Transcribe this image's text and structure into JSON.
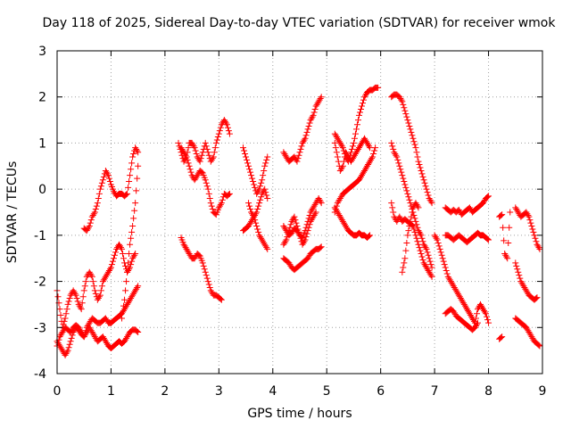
{
  "chart_data": {
    "type": "scatter",
    "title": "Day 118 of 2025, Sidereal Day-to-day VTEC variation (SDTVAR) for receiver wmok",
    "xlabel": "GPS time / hours",
    "ylabel": "SDTVAR / TECUs",
    "xlim": [
      0,
      9
    ],
    "ylim": [
      -4,
      3
    ],
    "xticks": [
      "0",
      "1",
      "2",
      "3",
      "4",
      "5",
      "6",
      "7",
      "8",
      "9"
    ],
    "yticks": [
      "-4",
      "-3",
      "-2",
      "-1",
      "0",
      "1",
      "2",
      "3"
    ],
    "grid": true,
    "marker": "+",
    "marker_color": "#ff0000",
    "series": [
      {
        "x": [
          0.0,
          0.05,
          0.1,
          0.15,
          0.2,
          0.25,
          0.3,
          0.35,
          0.4,
          0.45,
          0.5,
          0.55,
          0.6,
          0.65,
          0.7,
          0.75,
          0.8,
          0.85,
          0.9,
          0.95,
          1.0,
          1.05,
          1.1,
          1.15,
          1.2,
          1.25,
          1.3,
          1.35,
          1.4,
          1.45,
          1.5
        ],
        "y": [
          -3.4,
          -3.2,
          -3.1,
          -3.0,
          -3.05,
          -3.1,
          -3.0,
          -2.95,
          -3.0,
          -3.1,
          -3.2,
          -3.0,
          -2.9,
          -2.8,
          -2.85,
          -2.9,
          -2.9,
          -2.85,
          -2.8,
          -2.9,
          -2.9,
          -2.85,
          -2.8,
          -2.75,
          -2.7,
          -2.6,
          -2.5,
          -2.4,
          -2.3,
          -2.2,
          -2.1
        ]
      },
      {
        "x": [
          0.0,
          0.05,
          0.1,
          0.15,
          0.2,
          0.25,
          0.3,
          0.35,
          0.4,
          0.45,
          0.5,
          0.55,
          0.6,
          0.65,
          0.7,
          0.75,
          0.8,
          0.85,
          0.9,
          0.95,
          1.0,
          1.05,
          1.1,
          1.15,
          1.2,
          1.25,
          1.3,
          1.35,
          1.4,
          1.45,
          1.5
        ],
        "y": [
          -3.3,
          -3.4,
          -3.5,
          -3.6,
          -3.5,
          -3.3,
          -3.1,
          -3.0,
          -3.05,
          -3.15,
          -3.2,
          -3.1,
          -3.0,
          -3.1,
          -3.2,
          -3.3,
          -3.25,
          -3.2,
          -3.3,
          -3.4,
          -3.45,
          -3.4,
          -3.35,
          -3.3,
          -3.35,
          -3.3,
          -3.2,
          -3.1,
          -3.05,
          -3.05,
          -3.1
        ]
      },
      {
        "x": [
          0.0,
          0.05,
          0.1,
          0.15,
          0.2,
          0.25,
          0.3,
          0.35,
          0.4,
          0.45,
          0.5,
          0.55,
          0.6,
          0.65,
          0.7,
          0.75,
          0.8,
          0.85,
          0.9,
          0.95,
          1.0,
          1.05,
          1.1,
          1.15,
          1.2,
          1.25,
          1.3,
          1.35,
          1.4,
          1.45
        ],
        "y": [
          -2.2,
          -2.6,
          -3.0,
          -2.8,
          -2.5,
          -2.3,
          -2.2,
          -2.3,
          -2.5,
          -2.6,
          -2.2,
          -1.9,
          -1.8,
          -1.9,
          -2.2,
          -2.4,
          -2.3,
          -2.0,
          -1.9,
          -1.8,
          -1.7,
          -1.5,
          -1.3,
          -1.2,
          -1.3,
          -1.6,
          -1.8,
          -1.7,
          -1.5,
          -1.4
        ]
      },
      {
        "x": [
          0.5,
          0.55,
          0.6,
          0.65,
          0.7,
          0.75,
          0.8,
          0.85,
          0.9,
          0.95,
          1.0,
          1.05,
          1.1,
          1.15,
          1.2,
          1.25,
          1.3,
          1.35,
          1.4,
          1.45,
          1.5
        ],
        "y": [
          -0.85,
          -0.9,
          -0.8,
          -0.6,
          -0.5,
          -0.3,
          0.0,
          0.2,
          0.4,
          0.3,
          0.1,
          -0.05,
          -0.15,
          -0.1,
          -0.1,
          -0.15,
          -0.1,
          0.3,
          0.7,
          0.9,
          0.8
        ]
      },
      {
        "x": [
          1.2,
          1.25,
          1.3,
          1.35,
          1.4,
          1.45,
          1.5
        ],
        "y": [
          -2.8,
          -2.4,
          -1.8,
          -1.2,
          -0.8,
          -0.3,
          0.5
        ]
      },
      {
        "x": [
          2.25,
          2.3,
          2.35,
          2.4,
          2.45,
          2.5,
          2.55,
          2.6,
          2.65,
          2.7,
          2.75,
          2.8,
          2.85,
          2.9,
          2.95,
          3.0,
          3.05,
          3.1,
          3.15,
          3.2
        ],
        "y": [
          1.0,
          0.8,
          0.6,
          0.7,
          1.0,
          1.0,
          0.9,
          0.7,
          0.6,
          0.8,
          1.0,
          0.8,
          0.6,
          0.7,
          1.0,
          1.2,
          1.4,
          1.5,
          1.4,
          1.2
        ]
      },
      {
        "x": [
          2.3,
          2.35,
          2.4,
          2.45,
          2.5,
          2.55,
          2.6,
          2.65,
          2.7,
          2.75,
          2.8,
          2.85,
          2.9,
          2.95,
          3.0,
          3.05,
          3.1,
          3.15,
          3.2
        ],
        "y": [
          0.9,
          0.8,
          0.7,
          0.5,
          0.3,
          0.2,
          0.3,
          0.4,
          0.35,
          0.2,
          0.0,
          -0.3,
          -0.5,
          -0.55,
          -0.4,
          -0.3,
          -0.1,
          -0.15,
          -0.1
        ]
      },
      {
        "x": [
          2.3,
          2.35,
          2.4,
          2.45,
          2.5,
          2.55,
          2.6,
          2.65,
          2.7,
          2.75,
          2.8,
          2.85,
          2.9,
          2.95,
          3.0,
          3.05
        ],
        "y": [
          -1.05,
          -1.2,
          -1.3,
          -1.4,
          -1.5,
          -1.5,
          -1.4,
          -1.45,
          -1.6,
          -1.8,
          -2.0,
          -2.2,
          -2.3,
          -2.3,
          -2.35,
          -2.4
        ]
      },
      {
        "x": [
          3.45,
          3.5,
          3.55,
          3.6,
          3.65,
          3.7,
          3.75,
          3.8,
          3.85,
          3.9
        ],
        "y": [
          0.9,
          0.7,
          0.5,
          0.3,
          0.1,
          -0.1,
          0.0,
          0.2,
          0.5,
          0.7
        ]
      },
      {
        "x": [
          3.45,
          3.5,
          3.55,
          3.6,
          3.65,
          3.7,
          3.75,
          3.8,
          3.85,
          3.9
        ],
        "y": [
          -0.9,
          -0.85,
          -0.8,
          -0.7,
          -0.6,
          -0.5,
          -0.3,
          -0.1,
          0.0,
          -0.2
        ]
      },
      {
        "x": [
          3.55,
          3.6,
          3.65,
          3.7,
          3.75,
          3.8,
          3.85,
          3.9
        ],
        "y": [
          -0.3,
          -0.5,
          -0.6,
          -0.8,
          -1.0,
          -1.1,
          -1.2,
          -1.3
        ]
      },
      {
        "x": [
          4.2,
          4.25,
          4.3,
          4.35,
          4.4,
          4.45,
          4.5,
          4.55,
          4.6,
          4.65,
          4.7,
          4.75,
          4.8,
          4.85,
          4.9
        ],
        "y": [
          0.8,
          0.7,
          0.6,
          0.65,
          0.7,
          0.6,
          0.8,
          1.0,
          1.1,
          1.3,
          1.5,
          1.6,
          1.8,
          1.9,
          2.0
        ]
      },
      {
        "x": [
          4.2,
          4.25,
          4.3,
          4.35,
          4.4,
          4.45,
          4.5,
          4.55,
          4.6,
          4.65,
          4.7,
          4.75,
          4.8,
          4.85,
          4.9
        ],
        "y": [
          -0.8,
          -0.9,
          -1.0,
          -0.95,
          -0.85,
          -0.9,
          -1.0,
          -1.05,
          -0.9,
          -0.7,
          -0.5,
          -0.4,
          -0.3,
          -0.2,
          -0.3
        ]
      },
      {
        "x": [
          4.2,
          4.25,
          4.3,
          4.35,
          4.4,
          4.45,
          4.5,
          4.55,
          4.6,
          4.65,
          4.7,
          4.75,
          4.8,
          4.85,
          4.9
        ],
        "y": [
          -1.5,
          -1.55,
          -1.6,
          -1.7,
          -1.75,
          -1.7,
          -1.65,
          -1.6,
          -1.55,
          -1.5,
          -1.4,
          -1.35,
          -1.3,
          -1.3,
          -1.25
        ]
      },
      {
        "x": [
          4.2,
          4.25,
          4.3,
          4.35,
          4.4,
          4.45,
          4.5,
          4.55,
          4.6,
          4.65,
          4.7,
          4.75,
          4.8
        ],
        "y": [
          -1.2,
          -1.1,
          -0.9,
          -0.7,
          -0.6,
          -0.8,
          -1.0,
          -1.2,
          -1.1,
          -0.9,
          -0.7,
          -0.6,
          -0.5
        ]
      },
      {
        "x": [
          5.15,
          5.2,
          5.25,
          5.3,
          5.35,
          5.4,
          5.45,
          5.5,
          5.55,
          5.6,
          5.65,
          5.7,
          5.75,
          5.8,
          5.85,
          5.9,
          5.95
        ],
        "y": [
          1.2,
          1.1,
          1.0,
          0.9,
          0.7,
          0.6,
          0.8,
          1.0,
          1.3,
          1.6,
          1.8,
          2.0,
          2.1,
          2.15,
          2.15,
          2.2,
          2.2
        ]
      },
      {
        "x": [
          5.15,
          5.2,
          5.25,
          5.3,
          5.35,
          5.4,
          5.45,
          5.5,
          5.55,
          5.6,
          5.65,
          5.7,
          5.75,
          5.8
        ],
        "y": [
          1.0,
          0.7,
          0.4,
          0.5,
          0.8,
          0.7,
          0.6,
          0.7,
          0.8,
          0.9,
          1.0,
          1.1,
          1.0,
          0.9
        ]
      },
      {
        "x": [
          5.15,
          5.2,
          5.25,
          5.3,
          5.35,
          5.4,
          5.45,
          5.5,
          5.55,
          5.6,
          5.65,
          5.7,
          5.75,
          5.8,
          5.85,
          5.9
        ],
        "y": [
          -0.5,
          -0.3,
          -0.2,
          -0.1,
          -0.05,
          0.0,
          0.05,
          0.1,
          0.15,
          0.2,
          0.3,
          0.4,
          0.5,
          0.6,
          0.7,
          0.9
        ]
      },
      {
        "x": [
          5.15,
          5.2,
          5.25,
          5.3,
          5.35,
          5.4,
          5.45,
          5.5,
          5.55,
          5.6,
          5.65,
          5.7,
          5.75,
          5.8
        ],
        "y": [
          -0.4,
          -0.5,
          -0.6,
          -0.7,
          -0.8,
          -0.9,
          -0.95,
          -1.0,
          -1.0,
          -0.95,
          -1.0,
          -1.0,
          -1.05,
          -1.0
        ]
      },
      {
        "x": [
          6.2,
          6.25,
          6.3,
          6.35,
          6.4,
          6.45,
          6.5,
          6.55,
          6.6,
          6.65,
          6.7,
          6.75,
          6.8,
          6.85,
          6.9,
          6.95
        ],
        "y": [
          2.0,
          2.05,
          2.05,
          2.0,
          1.9,
          1.7,
          1.5,
          1.3,
          1.1,
          0.9,
          0.6,
          0.4,
          0.2,
          0.0,
          -0.2,
          -0.3
        ]
      },
      {
        "x": [
          6.2,
          6.25,
          6.3,
          6.35,
          6.4,
          6.45,
          6.5,
          6.55,
          6.6,
          6.65,
          6.7,
          6.75,
          6.8,
          6.85,
          6.9,
          6.95
        ],
        "y": [
          1.0,
          0.8,
          0.7,
          0.5,
          0.3,
          0.1,
          -0.1,
          -0.3,
          -0.5,
          -0.7,
          -0.9,
          -1.0,
          -1.2,
          -1.3,
          -1.5,
          -1.7
        ]
      },
      {
        "x": [
          6.2,
          6.25,
          6.3,
          6.35,
          6.4,
          6.45,
          6.5,
          6.55,
          6.6,
          6.65,
          6.7,
          6.75,
          6.8,
          6.85,
          6.9,
          6.95
        ],
        "y": [
          -0.3,
          -0.6,
          -0.7,
          -0.6,
          -0.7,
          -0.65,
          -0.7,
          -0.75,
          -0.8,
          -1.0,
          -1.2,
          -1.4,
          -1.6,
          -1.7,
          -1.8,
          -1.9
        ]
      },
      {
        "x": [
          6.4,
          6.45,
          6.5,
          6.55,
          6.6,
          6.65,
          6.7
        ],
        "y": [
          -1.8,
          -1.5,
          -1.0,
          -0.7,
          -0.4,
          -0.3,
          -0.4
        ]
      },
      {
        "x": [
          7.2,
          7.25,
          7.3,
          7.35,
          7.4,
          7.45,
          7.5,
          7.55,
          7.6,
          7.65,
          7.7,
          7.75,
          7.8,
          7.85,
          7.9,
          7.95,
          8.0
        ],
        "y": [
          -0.4,
          -0.45,
          -0.5,
          -0.45,
          -0.5,
          -0.45,
          -0.55,
          -0.5,
          -0.45,
          -0.4,
          -0.5,
          -0.45,
          -0.4,
          -0.35,
          -0.3,
          -0.2,
          -0.15
        ]
      },
      {
        "x": [
          7.2,
          7.25,
          7.3,
          7.35,
          7.4,
          7.45,
          7.5,
          7.55,
          7.6,
          7.65,
          7.7,
          7.75,
          7.8,
          7.85,
          7.9,
          7.95,
          8.0
        ],
        "y": [
          -1.0,
          -1.0,
          -1.05,
          -1.1,
          -1.05,
          -1.0,
          -1.05,
          -1.1,
          -1.15,
          -1.1,
          -1.05,
          -1.0,
          -0.95,
          -1.0,
          -1.0,
          -1.05,
          -1.1
        ]
      },
      {
        "x": [
          7.0,
          7.05,
          7.1,
          7.15,
          7.2,
          7.25,
          7.3,
          7.35,
          7.4,
          7.45,
          7.5,
          7.55,
          7.6,
          7.65,
          7.7,
          7.75,
          7.8,
          7.85,
          7.9,
          7.95,
          8.0
        ],
        "y": [
          -1.0,
          -1.1,
          -1.3,
          -1.5,
          -1.7,
          -1.9,
          -2.0,
          -2.1,
          -2.2,
          -2.3,
          -2.4,
          -2.5,
          -2.6,
          -2.7,
          -2.8,
          -2.9,
          -2.6,
          -2.5,
          -2.6,
          -2.7,
          -2.9
        ]
      },
      {
        "x": [
          7.2,
          7.25,
          7.3,
          7.35,
          7.4,
          7.45,
          7.5,
          7.55,
          7.6,
          7.65,
          7.7,
          7.75,
          7.8
        ],
        "y": [
          -2.7,
          -2.65,
          -2.6,
          -2.65,
          -2.75,
          -2.8,
          -2.85,
          -2.9,
          -2.95,
          -3.0,
          -3.05,
          -3.0,
          -2.9
        ]
      },
      {
        "x": [
          8.2,
          8.25,
          8.3,
          8.35,
          8.4
        ],
        "y": [
          -0.6,
          -0.55,
          -1.4,
          -1.5,
          -0.5
        ]
      },
      {
        "x": [
          8.5,
          8.55,
          8.6,
          8.65,
          8.7,
          8.75,
          8.8,
          8.85,
          8.9,
          8.95
        ],
        "y": [
          -0.4,
          -0.5,
          -0.6,
          -0.55,
          -0.5,
          -0.6,
          -0.8,
          -1.0,
          -1.2,
          -1.3
        ]
      },
      {
        "x": [
          8.5,
          8.55,
          8.6,
          8.65,
          8.7,
          8.75,
          8.8,
          8.85,
          8.9
        ],
        "y": [
          -1.6,
          -1.8,
          -2.0,
          -2.1,
          -2.2,
          -2.3,
          -2.35,
          -2.4,
          -2.35
        ]
      },
      {
        "x": [
          8.5,
          8.55,
          8.6,
          8.65,
          8.7,
          8.75,
          8.8,
          8.85,
          8.9,
          8.95
        ],
        "y": [
          -2.8,
          -2.85,
          -2.9,
          -2.95,
          -3.0,
          -3.1,
          -3.2,
          -3.3,
          -3.35,
          -3.4
        ]
      },
      {
        "x": [
          8.2,
          8.25
        ],
        "y": [
          -3.25,
          -3.2
        ]
      }
    ]
  }
}
